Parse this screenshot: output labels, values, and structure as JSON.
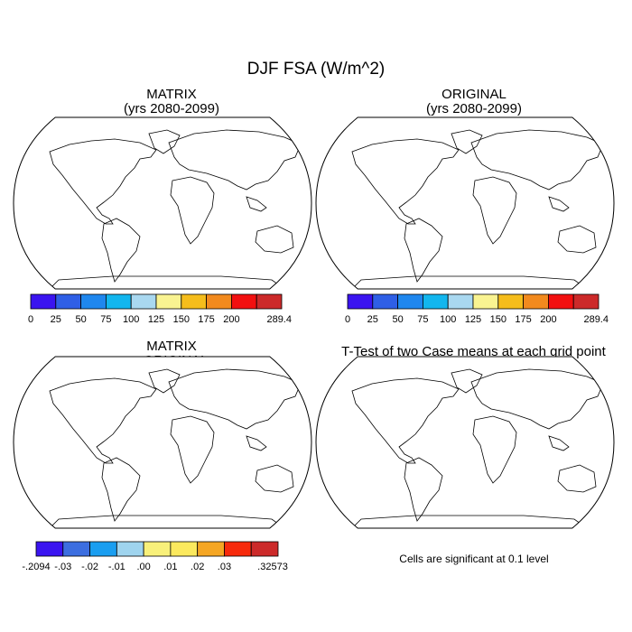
{
  "title": "DJF FSA (W/m^2)",
  "panels": [
    {
      "id": "matrix",
      "title": "MATRIX",
      "subtitle": "(yrs 2080-2099)"
    },
    {
      "id": "original",
      "title": "ORIGINAL",
      "subtitle": "(yrs 2080-2099)"
    },
    {
      "id": "difference",
      "title": "MATRIX",
      "subtitle": "- ORIGINAL"
    },
    {
      "id": "ttest",
      "title": "T-Test of two Case means at each grid point"
    }
  ],
  "colorbar_abs": {
    "labels": [
      "0",
      "25",
      "50",
      "75",
      "100",
      "125",
      "150",
      "175",
      "200",
      "289.4"
    ],
    "colors": [
      "#3a14f0",
      "#2f5fe6",
      "#1f87ee",
      "#12b6ee",
      "#a9d8f0",
      "#f9f391",
      "#f5bd1c",
      "#f28a1e",
      "#f21010",
      "#cc2a2a"
    ]
  },
  "colorbar_diff": {
    "labels": [
      "-.2094",
      "-.03",
      "-.02",
      "-.01",
      ".00",
      ".01",
      ".02",
      ".03",
      ".32573"
    ],
    "colors": [
      "#3a14f0",
      "#3c6ee0",
      "#1a9ef0",
      "#9fd4ee",
      "#f8f07a",
      "#fbe95e",
      "#f5a623",
      "#f72a0c",
      "#cc2a2a"
    ]
  },
  "note": "Cells are significant at 0.1 level"
}
